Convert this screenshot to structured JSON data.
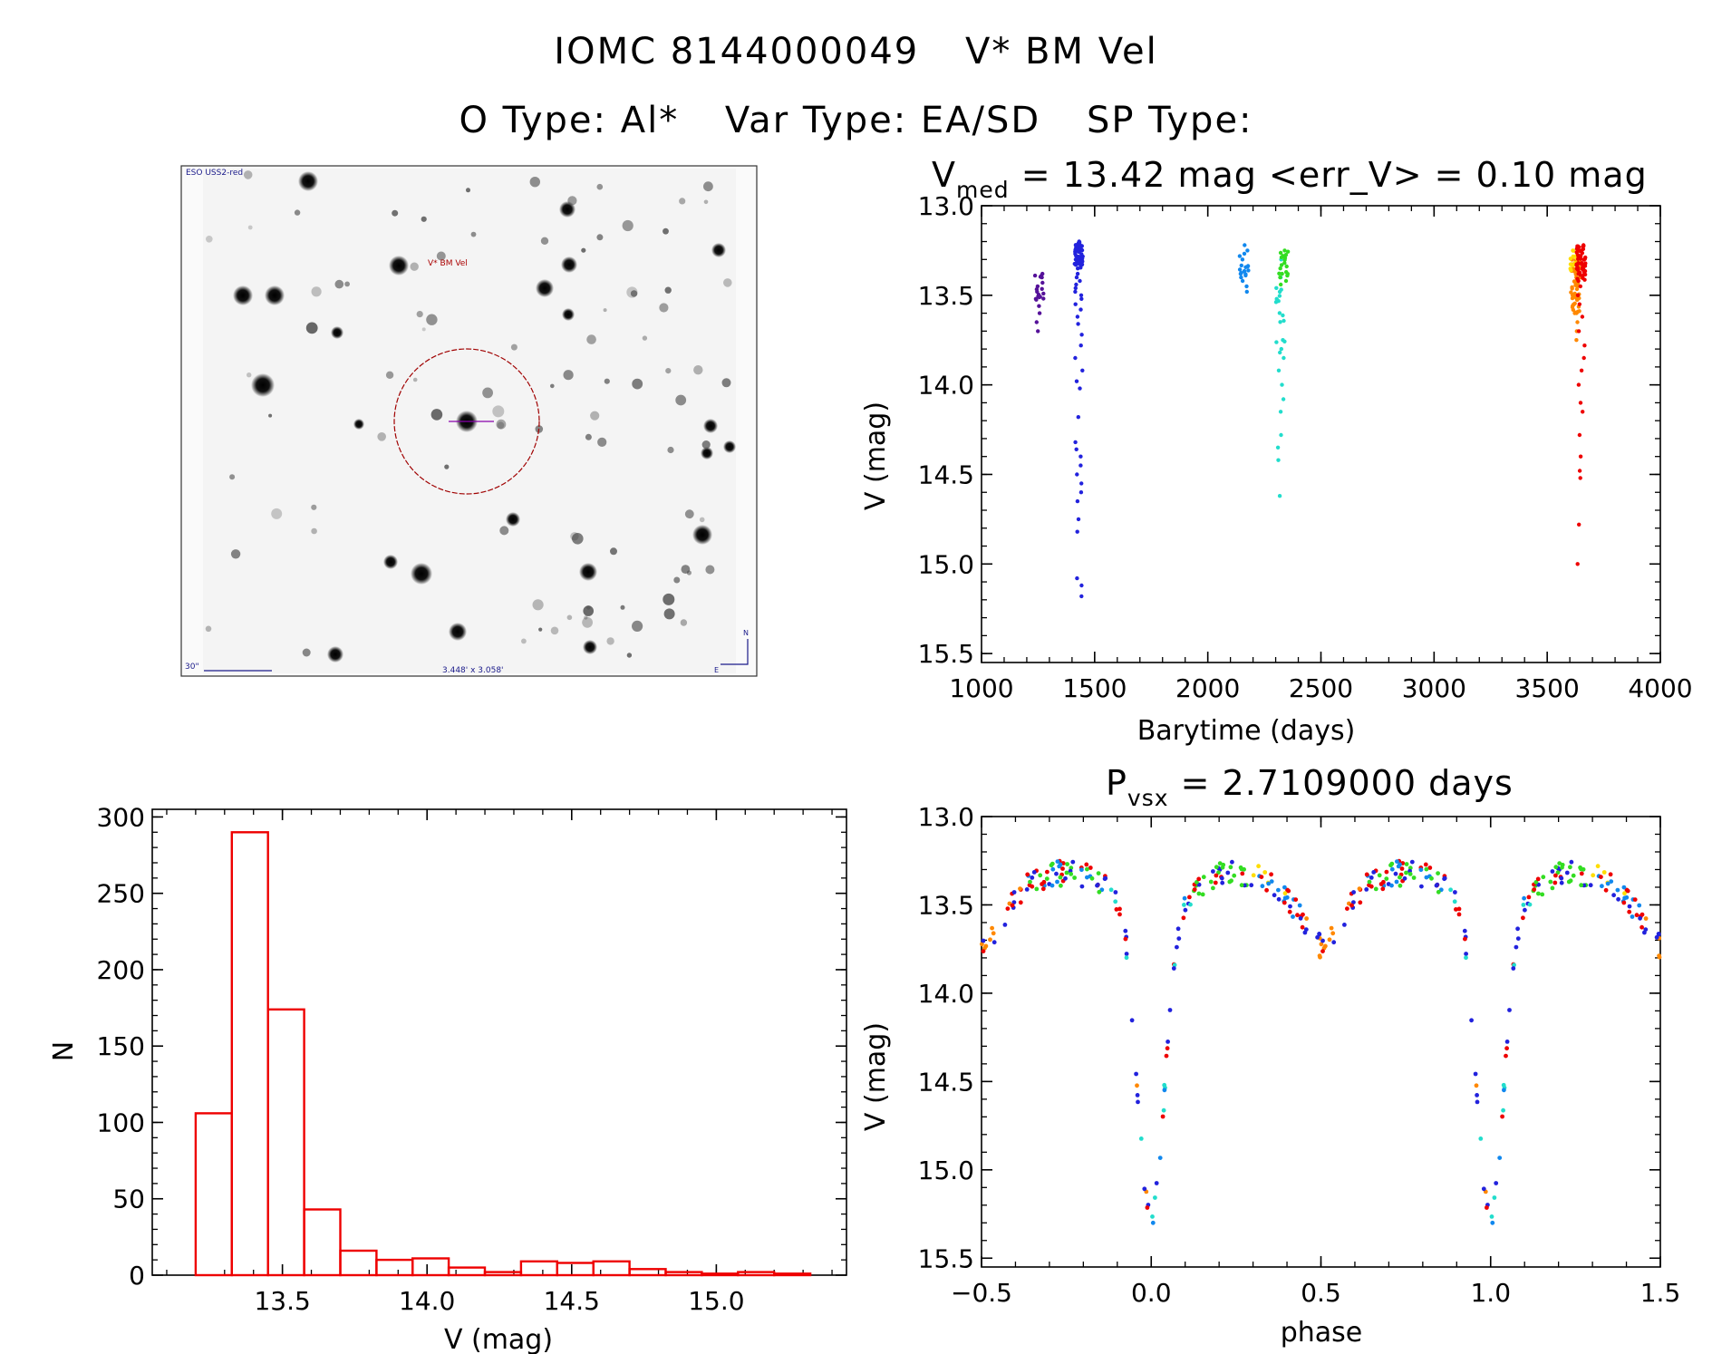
{
  "header": {
    "object_id": "IOMC 8144000049",
    "star_name": "V* BM Vel",
    "o_type": "O Type: Al*",
    "var_type": "Var Type: EA/SD",
    "sp_type": "SP Type:"
  },
  "finder_chart": {
    "survey_label": "ESO USS2-red",
    "target_label": "V* BM Vel",
    "scale_label": "30\"",
    "fov_label": "3.448' x 3.058'",
    "north_label": "N",
    "east_label": "E"
  },
  "colors": {
    "red": "#ee0000",
    "orange": "#ff8800",
    "yellow": "#ffdd00",
    "green": "#33dd22",
    "cyan": "#22ddcc",
    "azure": "#1188ee",
    "blue": "#2222dd",
    "purple": "#551199"
  },
  "chart_data": [
    {
      "id": "lightcurve",
      "type": "scatter",
      "title_main": "V",
      "title_sub": "med",
      "title_rest": " = 13.42 mag <err_V> = 0.10 mag",
      "xlabel": "Barytime (days)",
      "ylabel": "V (mag)",
      "xlim": [
        1000,
        4000
      ],
      "ylim": [
        15.55,
        13.0
      ],
      "xticks": [
        "1000",
        "1500",
        "2000",
        "2500",
        "3000",
        "3500",
        "4000"
      ],
      "yticks": [
        "13.0",
        "13.5",
        "14.0",
        "14.5",
        "15.0",
        "15.5"
      ],
      "series": [
        {
          "name": "season1",
          "color": "purple",
          "x": 1255,
          "points": [
            13.38,
            13.4,
            13.43,
            13.45,
            13.48,
            13.52,
            13.56,
            13.6,
            13.65,
            13.7
          ]
        },
        {
          "name": "season2",
          "color": "blue",
          "x": 1430,
          "points": [
            13.2,
            13.22,
            13.25,
            13.28,
            13.3,
            13.33,
            13.35,
            13.38,
            13.4,
            13.42,
            13.44,
            13.46,
            13.48,
            13.5,
            13.52,
            13.55,
            13.58,
            13.62,
            13.66,
            13.72,
            13.78,
            13.85,
            13.92,
            13.98,
            14.02,
            14.18,
            14.32,
            14.36,
            14.4,
            14.45,
            14.5,
            14.55,
            14.6,
            14.65,
            14.75,
            14.82,
            15.08,
            15.12,
            15.18
          ]
        },
        {
          "name": "season3",
          "color": "azure",
          "x": 2160,
          "points": [
            13.22,
            13.25,
            13.3,
            13.34,
            13.38,
            13.4,
            13.42,
            13.45,
            13.48
          ]
        },
        {
          "name": "season4",
          "color": "cyan",
          "x": 2320,
          "points": [
            13.3,
            13.4,
            13.48,
            13.52,
            13.75,
            13.8,
            13.85,
            13.92,
            14.0,
            14.08,
            14.15,
            14.28,
            14.35,
            14.42,
            14.62
          ]
        },
        {
          "name": "season5",
          "color": "green",
          "x": 2335,
          "points": [
            13.25,
            13.28,
            13.32,
            13.35,
            13.38,
            13.4,
            13.42,
            13.44
          ]
        },
        {
          "name": "season6",
          "color": "orange",
          "x": 3625,
          "points": [
            13.3,
            13.35,
            13.4,
            13.45,
            13.5,
            13.55,
            13.6,
            13.65,
            13.7,
            13.75
          ]
        },
        {
          "name": "season7",
          "color": "yellow",
          "x": 3620,
          "points": [
            13.25,
            13.28,
            13.32,
            13.36
          ]
        },
        {
          "name": "season8",
          "color": "red",
          "x": 3650,
          "points": [
            13.22,
            13.25,
            13.28,
            13.32,
            13.35,
            13.38,
            13.42,
            13.45,
            13.5,
            13.55,
            13.62,
            13.7,
            13.78,
            13.85,
            13.92,
            14.0,
            14.1,
            14.15,
            14.28,
            14.4,
            14.48,
            14.52,
            14.78,
            15.0
          ]
        }
      ]
    },
    {
      "id": "histogram",
      "type": "bar",
      "xlabel": "V (mag)",
      "ylabel": "N",
      "xlim": [
        13.05,
        15.45
      ],
      "ylim": [
        0,
        305
      ],
      "xticks": [
        "13.5",
        "14.0",
        "14.5",
        "15.0"
      ],
      "yticks": [
        "0",
        "50",
        "100",
        "150",
        "200",
        "250",
        "300"
      ],
      "bin_edges": [
        13.2,
        13.325,
        13.45,
        13.575,
        13.7,
        13.825,
        13.95,
        14.075,
        14.2,
        14.325,
        14.45,
        14.575,
        14.7,
        14.825,
        14.95,
        15.075,
        15.2,
        15.325
      ],
      "values": [
        106,
        290,
        174,
        43,
        16,
        10,
        11,
        5,
        2,
        9,
        8,
        9,
        4,
        2,
        1,
        2,
        1
      ]
    },
    {
      "id": "phased",
      "type": "scatter",
      "title_main": "P",
      "title_sub": "vsx",
      "title_rest": " = 2.7109000 days",
      "xlabel": "phase",
      "ylabel": "V (mag)",
      "xlim": [
        -0.5,
        1.5
      ],
      "ylim": [
        15.55,
        13.0
      ],
      "xticks": [
        "−0.5",
        "0.0",
        "0.5",
        "1.0",
        "1.5"
      ],
      "yticks": [
        "13.0",
        "13.5",
        "14.0",
        "14.5",
        "15.0",
        "15.5"
      ],
      "period_days": 2.7109,
      "primary_minimum_mag": 15.2,
      "out_of_eclipse_mag": 13.4
    }
  ]
}
